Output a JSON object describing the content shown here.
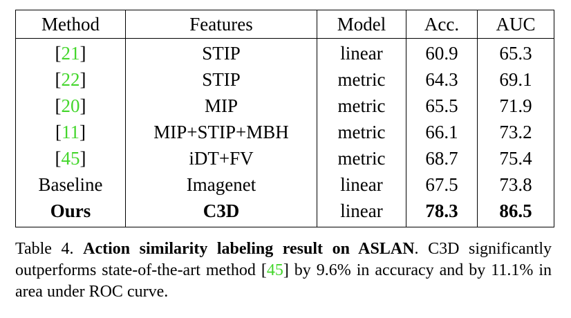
{
  "table": {
    "header": [
      "Method",
      "Features",
      "Model",
      "Acc.",
      "AUC"
    ],
    "rows": [
      [
        {
          "open": "[",
          "ref": "21",
          "close": "]"
        },
        "STIP",
        "linear",
        60.9,
        65.3
      ],
      [
        {
          "open": "[",
          "ref": "22",
          "close": "]"
        },
        "STIP",
        "metric",
        64.3,
        69.1
      ],
      [
        {
          "open": "[",
          "ref": "20",
          "close": "]"
        },
        "MIP",
        "metric",
        65.5,
        71.9
      ],
      [
        {
          "open": "[",
          "ref": "11",
          "close": "]"
        },
        "MIP+STIP+MBH",
        "metric",
        66.1,
        73.2
      ],
      [
        {
          "open": "[",
          "ref": "45",
          "close": "]"
        },
        "iDT+FV",
        "metric",
        68.7,
        75.4
      ],
      [
        "Baseline",
        "Imagenet",
        "linear",
        67.5,
        73.8
      ],
      [
        "Ours",
        "C3D",
        "linear",
        78.3,
        86.5
      ]
    ]
  },
  "caption": {
    "label": "Table 4.",
    "title": "Action similarity labeling result on ASLAN",
    "text": [
      ". C3D significantly outperforms state-of-the-art method [",
      "45",
      "] by 9.6% in accuracy and by 11.1% in area under ROC curve."
    ]
  }
}
